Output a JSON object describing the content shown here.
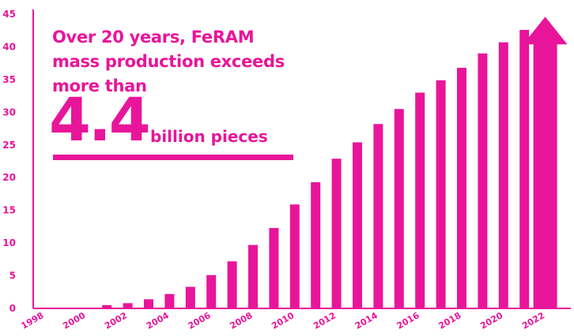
{
  "colors": {
    "accent": "#e8159a"
  },
  "callout": {
    "line1": "Over 20 years, FeRAM",
    "line2": "mass production exceeds",
    "line3": "more than",
    "big_number": "4.4",
    "unit": "billion pieces"
  },
  "chart_data": {
    "type": "bar",
    "title": "",
    "xlabel": "",
    "ylabel": "",
    "ylim": [
      0,
      45
    ],
    "yticks": [
      0,
      5,
      10,
      15,
      20,
      25,
      30,
      35,
      40,
      45
    ],
    "x_tick_labels": [
      "1998",
      "2000",
      "2002",
      "2004",
      "2006",
      "2008",
      "2010",
      "2012",
      "2014",
      "2016",
      "2018",
      "2020",
      "2022"
    ],
    "categories": [
      "1998",
      "1999",
      "2000",
      "2001",
      "2002",
      "2003",
      "2004",
      "2005",
      "2006",
      "2007",
      "2008",
      "2009",
      "2010",
      "2011",
      "2012",
      "2013",
      "2014",
      "2015",
      "2016",
      "2017",
      "2018",
      "2019",
      "2020",
      "2021",
      "2022"
    ],
    "values": [
      0.1,
      0.1,
      0.1,
      0.5,
      0.8,
      1.4,
      2.2,
      3.3,
      5.1,
      7.2,
      9.7,
      12.3,
      15.9,
      19.3,
      22.9,
      25.4,
      28.2,
      30.5,
      33.0,
      34.9,
      36.8,
      39.0,
      40.7,
      42.6,
      44.0
    ],
    "final_bar_arrow": true,
    "grid": false,
    "legend": "none"
  }
}
